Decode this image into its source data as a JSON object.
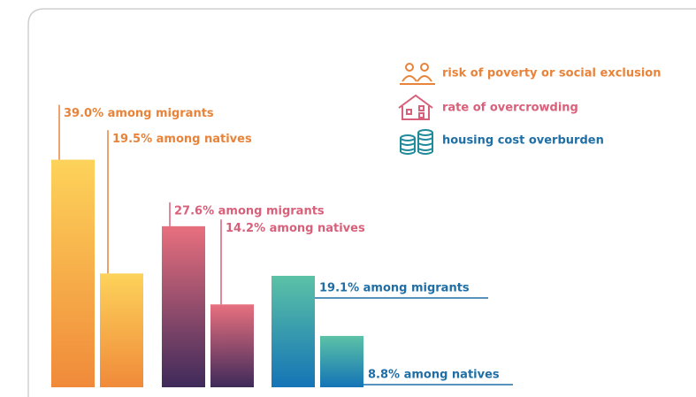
{
  "chart_data": {
    "type": "bar",
    "series": [
      {
        "name": "risk of poverty or social exclusion",
        "color": "#e8833a",
        "values": [
          39.0,
          19.5
        ],
        "value_labels": [
          "39.0% among migrants",
          "19.5% among natives"
        ]
      },
      {
        "name": "rate of overcrowding",
        "color": "#d9607a",
        "values": [
          27.6,
          14.2
        ],
        "value_labels": [
          "27.6% among migrants",
          "14.2% among natives"
        ]
      },
      {
        "name": "housing cost overburden",
        "color": "#1f6fa6",
        "values": [
          19.1,
          8.8
        ],
        "value_labels": [
          "19.1% among migrants",
          "8.8% among natives"
        ]
      }
    ]
  }
}
